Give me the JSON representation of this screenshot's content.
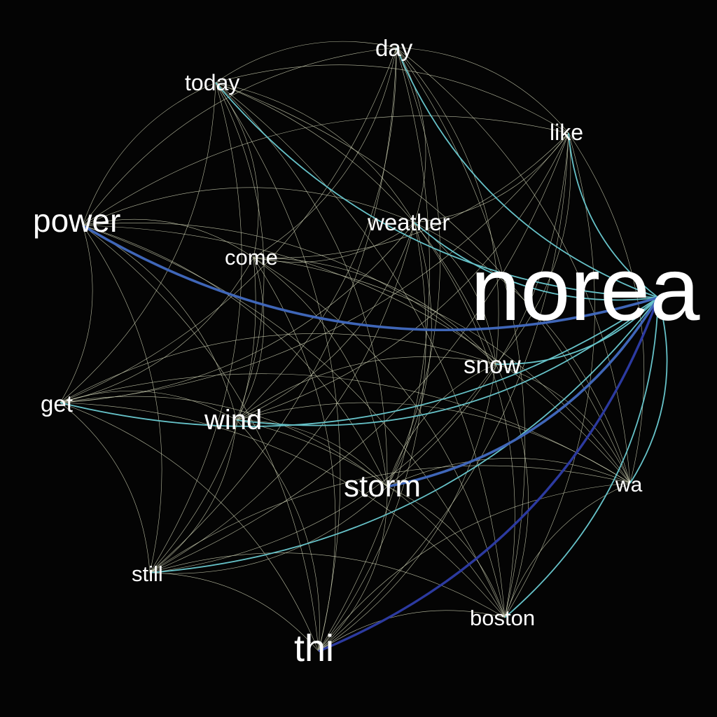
{
  "network": {
    "background": "#040404",
    "label_color": "#ffffff",
    "edge_colors": {
      "weak": "#d8dcbc",
      "medium": "#66c2c8",
      "strong": "#3f66b8",
      "strongest": "#2c3aa0"
    },
    "nodes": [
      {
        "id": "norea",
        "label": "norea"
      },
      {
        "id": "power",
        "label": "power"
      },
      {
        "id": "thi",
        "label": "thi"
      },
      {
        "id": "storm",
        "label": "storm"
      },
      {
        "id": "wind",
        "label": "wind"
      },
      {
        "id": "snow",
        "label": "snow"
      },
      {
        "id": "weather",
        "label": "weather"
      },
      {
        "id": "today",
        "label": "today"
      },
      {
        "id": "day",
        "label": "day"
      },
      {
        "id": "like",
        "label": "like"
      },
      {
        "id": "come",
        "label": "come"
      },
      {
        "id": "get",
        "label": "get"
      },
      {
        "id": "still",
        "label": "still"
      },
      {
        "id": "boston",
        "label": "boston"
      },
      {
        "id": "wa",
        "label": "wa"
      }
    ],
    "edges": [
      [
        "norea",
        "power",
        "strong"
      ],
      [
        "norea",
        "thi",
        "strongest"
      ],
      [
        "norea",
        "storm",
        "strong"
      ],
      [
        "norea",
        "wind",
        "medium"
      ],
      [
        "norea",
        "snow",
        "medium"
      ],
      [
        "norea",
        "get",
        "medium"
      ],
      [
        "norea",
        "today",
        "medium"
      ],
      [
        "norea",
        "day",
        "medium"
      ],
      [
        "norea",
        "like",
        "medium"
      ],
      [
        "norea",
        "weather",
        "medium"
      ],
      [
        "norea",
        "boston",
        "medium"
      ],
      [
        "norea",
        "still",
        "medium"
      ],
      [
        "norea",
        "wa",
        "medium"
      ],
      [
        "power",
        "today",
        "weak"
      ],
      [
        "power",
        "day",
        "weak"
      ],
      [
        "power",
        "like",
        "weak"
      ],
      [
        "power",
        "weather",
        "weak"
      ],
      [
        "power",
        "come",
        "weak"
      ],
      [
        "power",
        "get",
        "weak"
      ],
      [
        "power",
        "wind",
        "weak"
      ],
      [
        "power",
        "storm",
        "weak"
      ],
      [
        "power",
        "snow",
        "weak"
      ],
      [
        "power",
        "still",
        "weak"
      ],
      [
        "power",
        "thi",
        "weak"
      ],
      [
        "power",
        "boston",
        "weak"
      ],
      [
        "power",
        "wa",
        "weak"
      ],
      [
        "today",
        "day",
        "weak"
      ],
      [
        "today",
        "like",
        "weak"
      ],
      [
        "today",
        "weather",
        "weak"
      ],
      [
        "today",
        "come",
        "weak"
      ],
      [
        "today",
        "get",
        "weak"
      ],
      [
        "today",
        "wind",
        "weak"
      ],
      [
        "today",
        "storm",
        "weak"
      ],
      [
        "today",
        "snow",
        "weak"
      ],
      [
        "today",
        "still",
        "weak"
      ],
      [
        "today",
        "thi",
        "weak"
      ],
      [
        "today",
        "boston",
        "weak"
      ],
      [
        "today",
        "wa",
        "weak"
      ],
      [
        "day",
        "like",
        "weak"
      ],
      [
        "day",
        "weather",
        "weak"
      ],
      [
        "day",
        "come",
        "weak"
      ],
      [
        "day",
        "get",
        "weak"
      ],
      [
        "day",
        "wind",
        "weak"
      ],
      [
        "day",
        "storm",
        "weak"
      ],
      [
        "day",
        "snow",
        "weak"
      ],
      [
        "day",
        "still",
        "weak"
      ],
      [
        "day",
        "thi",
        "weak"
      ],
      [
        "day",
        "boston",
        "weak"
      ],
      [
        "day",
        "wa",
        "weak"
      ],
      [
        "like",
        "weather",
        "weak"
      ],
      [
        "like",
        "come",
        "weak"
      ],
      [
        "like",
        "get",
        "weak"
      ],
      [
        "like",
        "wind",
        "weak"
      ],
      [
        "like",
        "storm",
        "weak"
      ],
      [
        "like",
        "snow",
        "weak"
      ],
      [
        "like",
        "still",
        "weak"
      ],
      [
        "like",
        "thi",
        "weak"
      ],
      [
        "like",
        "boston",
        "weak"
      ],
      [
        "like",
        "wa",
        "weak"
      ],
      [
        "weather",
        "come",
        "weak"
      ],
      [
        "weather",
        "get",
        "weak"
      ],
      [
        "weather",
        "wind",
        "weak"
      ],
      [
        "weather",
        "storm",
        "weak"
      ],
      [
        "weather",
        "snow",
        "weak"
      ],
      [
        "weather",
        "still",
        "weak"
      ],
      [
        "weather",
        "thi",
        "weak"
      ],
      [
        "weather",
        "boston",
        "weak"
      ],
      [
        "weather",
        "wa",
        "weak"
      ],
      [
        "come",
        "get",
        "weak"
      ],
      [
        "come",
        "wind",
        "weak"
      ],
      [
        "come",
        "storm",
        "weak"
      ],
      [
        "come",
        "snow",
        "weak"
      ],
      [
        "come",
        "still",
        "weak"
      ],
      [
        "come",
        "thi",
        "weak"
      ],
      [
        "come",
        "boston",
        "weak"
      ],
      [
        "come",
        "wa",
        "weak"
      ],
      [
        "get",
        "wind",
        "weak"
      ],
      [
        "get",
        "storm",
        "weak"
      ],
      [
        "get",
        "snow",
        "weak"
      ],
      [
        "get",
        "still",
        "weak"
      ],
      [
        "get",
        "thi",
        "weak"
      ],
      [
        "get",
        "boston",
        "weak"
      ],
      [
        "get",
        "wa",
        "weak"
      ],
      [
        "wind",
        "storm",
        "weak"
      ],
      [
        "wind",
        "snow",
        "weak"
      ],
      [
        "wind",
        "still",
        "weak"
      ],
      [
        "wind",
        "thi",
        "weak"
      ],
      [
        "wind",
        "boston",
        "weak"
      ],
      [
        "wind",
        "wa",
        "weak"
      ],
      [
        "storm",
        "snow",
        "weak"
      ],
      [
        "storm",
        "still",
        "weak"
      ],
      [
        "storm",
        "thi",
        "weak"
      ],
      [
        "storm",
        "boston",
        "weak"
      ],
      [
        "storm",
        "wa",
        "weak"
      ],
      [
        "snow",
        "still",
        "weak"
      ],
      [
        "snow",
        "thi",
        "weak"
      ],
      [
        "snow",
        "boston",
        "weak"
      ],
      [
        "snow",
        "wa",
        "weak"
      ],
      [
        "still",
        "thi",
        "weak"
      ],
      [
        "still",
        "boston",
        "weak"
      ],
      [
        "still",
        "wa",
        "weak"
      ],
      [
        "thi",
        "boston",
        "weak"
      ],
      [
        "thi",
        "wa",
        "weak"
      ],
      [
        "boston",
        "wa",
        "weak"
      ]
    ]
  }
}
